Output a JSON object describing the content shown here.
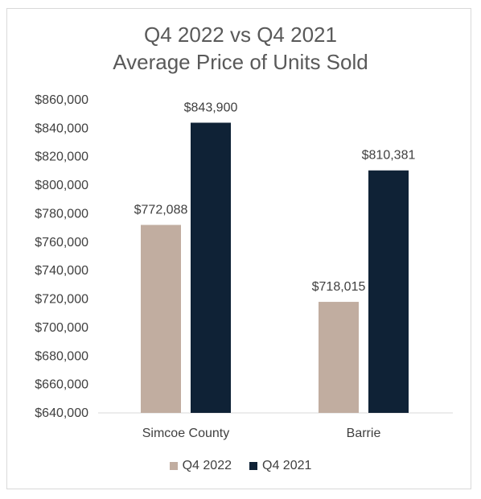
{
  "chart_data": {
    "type": "bar",
    "title": "Q4 2022 vs Q4 2021",
    "subtitle": "Average Price of Units Sold",
    "categories": [
      "Simcoe County",
      "Barrie"
    ],
    "series": [
      {
        "name": "Q4 2022",
        "color": "#c1ada0",
        "values": [
          772088,
          718015
        ],
        "labels": [
          "$772,088",
          "$718,015"
        ]
      },
      {
        "name": "Q4 2021",
        "color": "#0f2236",
        "values": [
          843900,
          810381
        ],
        "labels": [
          "$843,900",
          "$810,381"
        ]
      }
    ],
    "ylim": [
      640000,
      860000
    ],
    "yticks": [
      640000,
      660000,
      680000,
      700000,
      720000,
      740000,
      760000,
      780000,
      800000,
      820000,
      840000,
      860000
    ],
    "ytick_labels": [
      "$640,000",
      "$660,000",
      "$680,000",
      "$700,000",
      "$720,000",
      "$740,000",
      "$760,000",
      "$780,000",
      "$800,000",
      "$820,000",
      "$840,000",
      "$860,000"
    ],
    "grid": false,
    "legend": "bottom"
  }
}
